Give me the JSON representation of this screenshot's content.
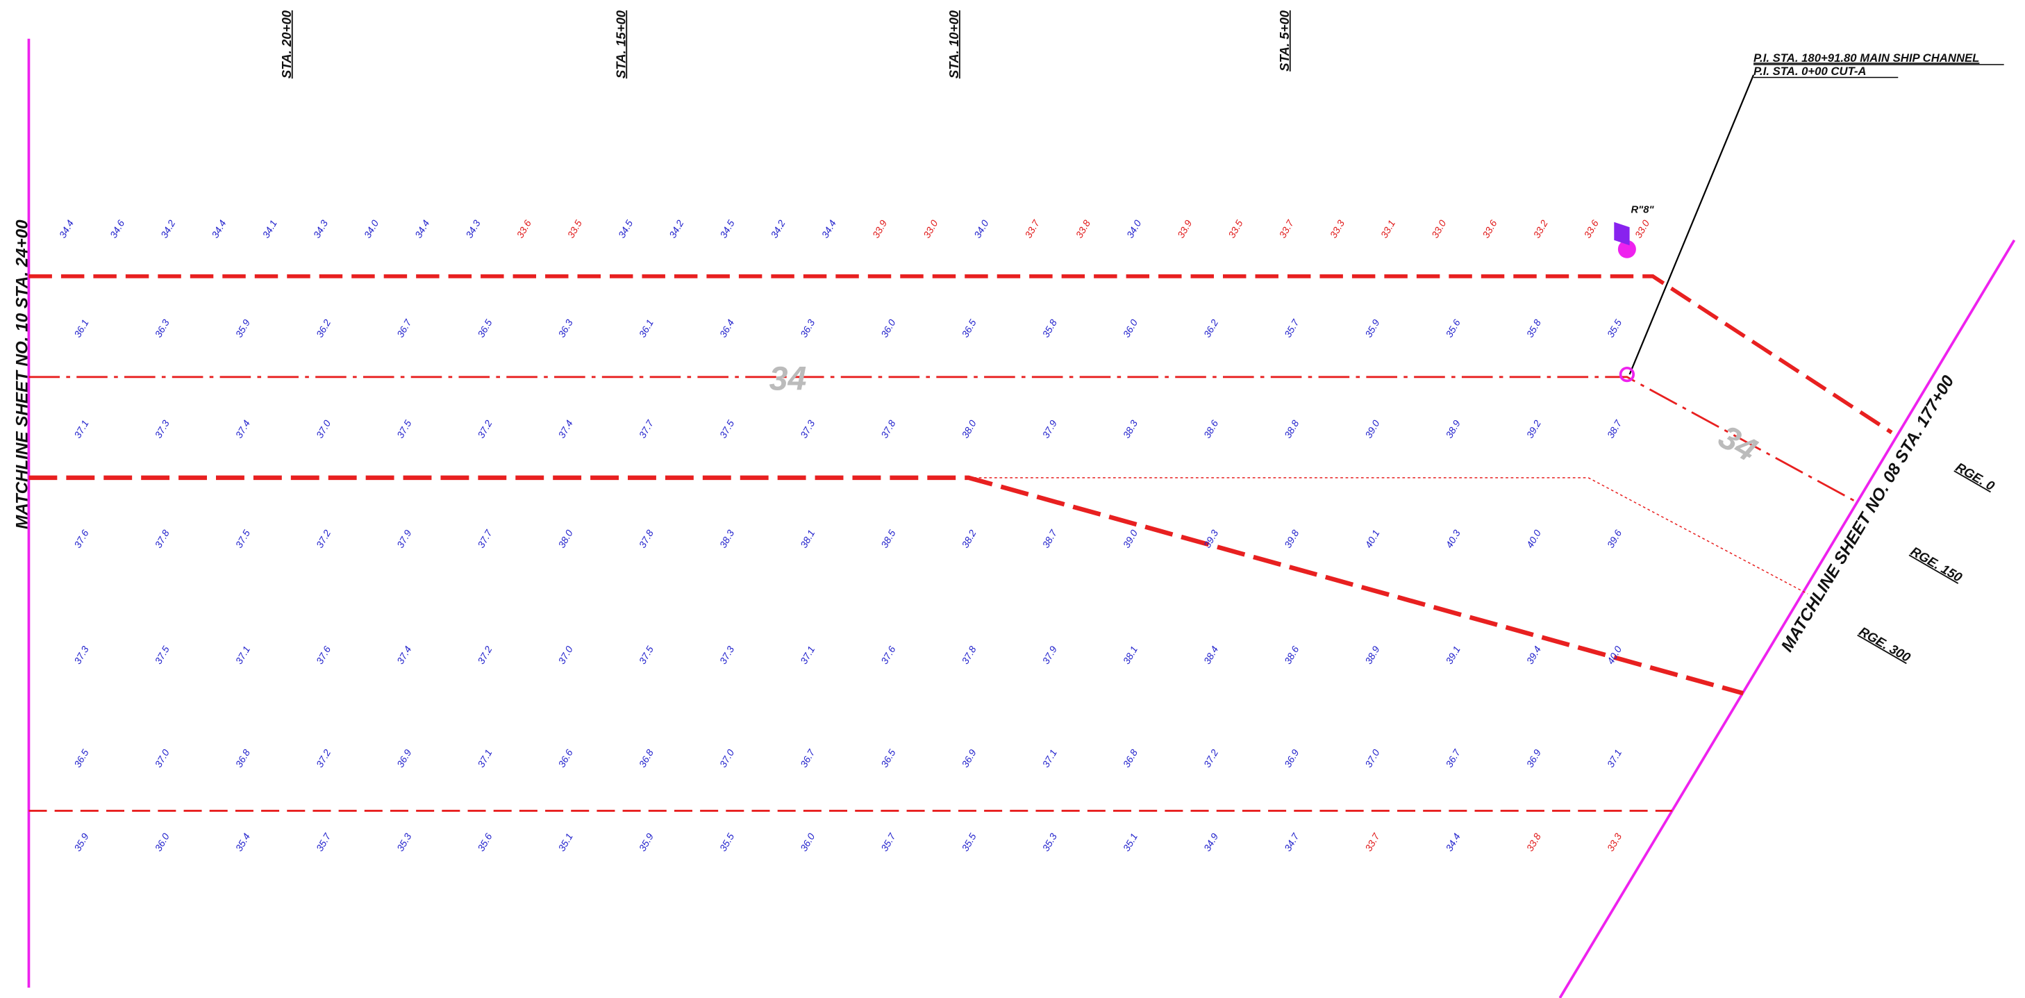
{
  "stations": [
    "STA. 20+00",
    "STA. 15+00",
    "STA. 10+00",
    "STA. 5+00"
  ],
  "pi_labels": [
    "P.I. STA. 180+91.80 MAIN SHIP CHANNEL",
    "P.I. STA. 0+00 CUT-A"
  ],
  "matchline_left": "MATCHLINE SHEET NO. 10 STA. 24+00",
  "matchline_right": "MATCHLINE SHEET NO. 08 STA. 177+00",
  "ranges": [
    "RGE. 0",
    "RGE. 150",
    "RGE. 300"
  ],
  "marker": "R\"8\"",
  "contours": [
    "34",
    "34"
  ],
  "colors": {
    "sounding": "#2222cc",
    "shoal": "#e01818",
    "line": "#e82020",
    "matchline": "#ee22ee"
  },
  "soundings": {
    "rows": [
      [
        "34.4",
        "34.6",
        "34.2",
        "34.4",
        "34.1",
        "34.3",
        "34.0",
        "34.4",
        "34.3",
        {
          "v": "33.6",
          "shoal": true
        },
        {
          "v": "33.5",
          "shoal": true
        },
        "34.5",
        "34.2",
        "34.5",
        "34.2",
        "34.4",
        {
          "v": "33.9",
          "shoal": true
        },
        {
          "v": "33.0",
          "shoal": true
        },
        "34.0",
        {
          "v": "33.7",
          "shoal": true
        },
        {
          "v": "33.8",
          "shoal": true
        },
        "34.0",
        {
          "v": "33.9",
          "shoal": true
        },
        {
          "v": "33.5",
          "shoal": true
        },
        {
          "v": "33.7",
          "shoal": true
        },
        {
          "v": "33.3",
          "shoal": true
        },
        {
          "v": "33.1",
          "shoal": true
        },
        {
          "v": "33.0",
          "shoal": true
        },
        {
          "v": "33.6",
          "shoal": true
        },
        {
          "v": "33.2",
          "shoal": true
        },
        {
          "v": "33.6",
          "shoal": true
        },
        {
          "v": "33.0",
          "shoal": true
        }
      ],
      [
        "36.1",
        "36.3",
        "35.9",
        "36.2",
        "36.7",
        "36.5",
        "36.3",
        "36.1",
        "36.4",
        "36.3",
        "36.0",
        "36.5",
        "35.8",
        "36.0",
        "36.2",
        "35.7",
        "35.9",
        "35.6",
        "35.8",
        "35.5"
      ],
      [
        "37.1",
        "37.3",
        "37.4",
        "37.0",
        "37.5",
        "37.2",
        "37.4",
        "37.7",
        "37.5",
        "37.3",
        "37.8",
        "38.0",
        "37.9",
        "38.3",
        "38.6",
        "38.8",
        "39.0",
        "38.9",
        "39.2",
        "38.7"
      ],
      [
        "37.6",
        "37.8",
        "37.5",
        "37.2",
        "37.9",
        "37.7",
        "38.0",
        "37.8",
        "38.3",
        "38.1",
        "38.5",
        "38.2",
        "38.7",
        "39.0",
        "39.3",
        "39.8",
        "40.1",
        "40.3",
        "40.0",
        "39.6"
      ],
      [
        "37.3",
        "37.5",
        "37.1",
        "37.6",
        "37.4",
        "37.2",
        "37.0",
        "37.5",
        "37.3",
        "37.1",
        "37.6",
        "37.8",
        "37.9",
        "38.1",
        "38.4",
        "38.6",
        "38.9",
        "39.1",
        "39.4",
        "40.0"
      ],
      [
        "36.5",
        "37.0",
        "36.8",
        "37.2",
        "36.9",
        "37.1",
        "36.6",
        "36.8",
        "37.0",
        "36.7",
        "36.5",
        "36.9",
        "37.1",
        "36.8",
        "37.2",
        "36.9",
        "37.0",
        "36.7",
        "36.9",
        "37.1"
      ],
      [
        "35.9",
        "36.0",
        "35.4",
        "35.7",
        "35.3",
        "35.6",
        "35.1",
        "35.9",
        "35.5",
        "36.0",
        "35.7",
        "35.5",
        "35.3",
        "35.1",
        "34.9",
        "34.7",
        {
          "v": "33.7",
          "shoal": true
        },
        "34.4",
        {
          "v": "33.8",
          "shoal": true
        },
        {
          "v": "33.3",
          "shoal": true
        }
      ]
    ]
  }
}
